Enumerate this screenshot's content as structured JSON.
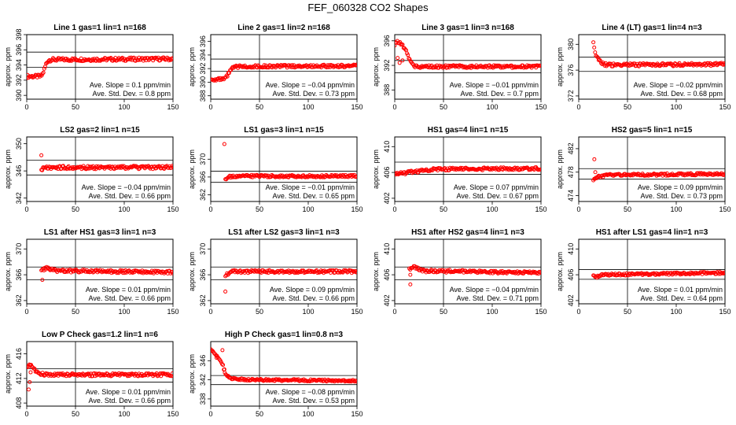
{
  "figure_title": "FEF_060328  CO2 Shapes",
  "ylabel": "approx. ppm",
  "colors": {
    "points": "#ff0000",
    "axes": "#000000"
  },
  "chart_data": [
    {
      "type": "scatter",
      "title": "Line 1 gas=1 lin=1 n=168",
      "xlim": [
        0,
        150
      ],
      "ylim": [
        389.5,
        398
      ],
      "xticks": [
        0,
        50,
        100,
        150
      ],
      "yticks": [
        390,
        392,
        394,
        396,
        398
      ],
      "vline": 50,
      "hlines": [
        395.7,
        393.7
      ],
      "shape": [
        [
          0,
          392.5
        ],
        [
          5,
          392.5
        ],
        [
          10,
          392.5
        ],
        [
          14,
          392.5
        ],
        [
          16,
          392.7
        ],
        [
          18,
          393.4
        ],
        [
          20,
          394.2
        ],
        [
          22,
          394.6
        ],
        [
          25,
          394.7
        ],
        [
          150,
          394.8
        ]
      ],
      "spikes": [],
      "annotation": [
        "Ave. Slope =  0.1  ppm/min",
        "Ave. Std. Dev. =  0.8  ppm"
      ]
    },
    {
      "type": "scatter",
      "title": "Line 2 gas=1 lin=2 n=168",
      "xlim": [
        0,
        150
      ],
      "ylim": [
        387.5,
        397
      ],
      "xticks": [
        0,
        50,
        100,
        150
      ],
      "yticks": [
        388,
        390,
        392,
        394,
        396
      ],
      "vline": 50,
      "hlines": [
        393.4,
        391.6
      ],
      "shape": [
        [
          0,
          390.4
        ],
        [
          5,
          390.4
        ],
        [
          12,
          390.4
        ],
        [
          15,
          390.5
        ],
        [
          18,
          391.2
        ],
        [
          21,
          391.9
        ],
        [
          24,
          392.2
        ],
        [
          30,
          392.3
        ],
        [
          150,
          392.4
        ]
      ],
      "spikes": [],
      "annotation": [
        "Ave. Slope = −0.04  ppm/min",
        "Ave. Std. Dev. =  0.73  ppm"
      ]
    },
    {
      "type": "scatter",
      "title": "Line 3 gas=1 lin=3 n=168",
      "xlim": [
        0,
        150
      ],
      "ylim": [
        386.5,
        397
      ],
      "xticks": [
        0,
        50,
        100,
        150
      ],
      "yticks": [
        388,
        392,
        396
      ],
      "vline": 50,
      "hlines": [
        392.8,
        390.8
      ],
      "shape": [
        [
          0,
          395.4
        ],
        [
          3,
          395.9
        ],
        [
          6,
          395.6
        ],
        [
          9,
          395
        ],
        [
          12,
          394.2
        ],
        [
          15,
          393
        ],
        [
          18,
          392.2
        ],
        [
          21,
          391.8
        ],
        [
          150,
          391.8
        ]
      ],
      "spikes": [
        [
          3,
          393.2
        ],
        [
          5,
          392.4
        ],
        [
          8,
          392.8
        ]
      ],
      "annotation": [
        "Ave. Slope = −0.01  ppm/min",
        "Ave. Std. Dev. =  0.7  ppm"
      ]
    },
    {
      "type": "scatter",
      "title": "Line 4 (LT) gas=1 lin=4 n=3",
      "xlim": [
        0,
        150
      ],
      "ylim": [
        371.5,
        381.5
      ],
      "xticks": [
        0,
        50,
        100,
        150
      ],
      "yticks": [
        372,
        376,
        380
      ],
      "vline": 50,
      "hlines": [
        378,
        375.8
      ],
      "shape": [
        [
          15,
          380.1
        ],
        [
          17,
          378.4
        ],
        [
          20,
          377.8
        ],
        [
          24,
          377
        ],
        [
          30,
          376.8
        ],
        [
          150,
          376.9
        ]
      ],
      "spikes": [],
      "annotation": [
        "Ave. Slope = −0.02  ppm/min",
        "Ave. Std. Dev. =  0.68  ppm"
      ]
    },
    {
      "type": "scatter",
      "title": "LS2 gas=2 lin=1 n=15",
      "xlim": [
        0,
        150
      ],
      "ylim": [
        341.5,
        351
      ],
      "xticks": [
        0,
        50,
        100,
        150
      ],
      "yticks": [
        342,
        346,
        350
      ],
      "vline": 50,
      "hlines": [
        347.6,
        345.4
      ],
      "shape": [
        [
          15,
          346.2
        ],
        [
          18,
          346.6
        ],
        [
          25,
          346.5
        ],
        [
          150,
          346.5
        ]
      ],
      "spikes": [
        [
          15,
          348.3
        ]
      ],
      "annotation": [
        "Ave. Slope = −0.04  ppm/min",
        "Ave. Std. Dev. =  0.66  ppm"
      ]
    },
    {
      "type": "scatter",
      "title": "LS1 gas=3 lin=1 n=15",
      "xlim": [
        0,
        150
      ],
      "ylim": [
        360.5,
        375
      ],
      "xticks": [
        0,
        50,
        100,
        150
      ],
      "yticks": [
        362,
        366,
        370
      ],
      "vline": 50,
      "hlines": [
        367.3,
        364.8
      ],
      "shape": [
        [
          15,
          365.4
        ],
        [
          18,
          366
        ],
        [
          25,
          366.2
        ],
        [
          150,
          366.2
        ]
      ],
      "spikes": [
        [
          14,
          373.4
        ]
      ],
      "annotation": [
        "Ave. Slope = −0.01  ppm/min",
        "Ave. Std. Dev. =  0.65  ppm"
      ]
    },
    {
      "type": "scatter",
      "title": "HS1 gas=4 lin=1 n=15",
      "xlim": [
        0,
        150
      ],
      "ylim": [
        401.5,
        411.5
      ],
      "xticks": [
        0,
        50,
        100,
        150
      ],
      "yticks": [
        402,
        406,
        410
      ],
      "vline": 50,
      "hlines": [
        407.6,
        405.7
      ],
      "shape": [
        [
          0,
          405.8
        ],
        [
          10,
          405.9
        ],
        [
          20,
          406.1
        ],
        [
          40,
          406.5
        ],
        [
          150,
          406.6
        ]
      ],
      "spikes": [],
      "annotation": [
        "Ave. Slope =  0.07  ppm/min",
        "Ave. Std. Dev. =  0.67  ppm"
      ]
    },
    {
      "type": "scatter",
      "title": "HS2 gas=5 lin=1 n=15",
      "xlim": [
        0,
        150
      ],
      "ylim": [
        473,
        484
      ],
      "xticks": [
        0,
        50,
        100,
        150
      ],
      "yticks": [
        474,
        478,
        482
      ],
      "vline": 50,
      "hlines": [
        478.6,
        476.8
      ],
      "shape": [
        [
          15,
          476.8
        ],
        [
          20,
          477.2
        ],
        [
          30,
          477.5
        ],
        [
          150,
          477.7
        ]
      ],
      "spikes": [
        [
          16,
          480.2
        ],
        [
          17,
          478
        ]
      ],
      "annotation": [
        "Ave. Slope =  0.09  ppm/min",
        "Ave. Std. Dev. =  0.73  ppm"
      ]
    },
    {
      "type": "scatter",
      "title": "LS1 after HS1 gas=3 lin=1 n=3",
      "xlim": [
        0,
        150
      ],
      "ylim": [
        361.5,
        371.5
      ],
      "xticks": [
        0,
        50,
        100,
        150
      ],
      "yticks": [
        362,
        366,
        370
      ],
      "vline": 50,
      "hlines": [
        367.2,
        365.2
      ],
      "shape": [
        [
          15,
          366.5
        ],
        [
          20,
          367.1
        ],
        [
          30,
          366.6
        ],
        [
          150,
          366.4
        ]
      ],
      "spikes": [
        [
          16,
          365.2
        ]
      ],
      "annotation": [
        "Ave. Slope =  0.01  ppm/min",
        "Ave. Std. Dev. =  0.66  ppm"
      ]
    },
    {
      "type": "scatter",
      "title": "LS1 after LS2 gas=3 lin=1 n=3",
      "xlim": [
        0,
        150
      ],
      "ylim": [
        361.5,
        371.5
      ],
      "xticks": [
        0,
        50,
        100,
        150
      ],
      "yticks": [
        362,
        366,
        370
      ],
      "vline": 50,
      "hlines": [
        367.2,
        365.2
      ],
      "shape": [
        [
          15,
          365.8
        ],
        [
          20,
          366.5
        ],
        [
          30,
          366.5
        ],
        [
          150,
          366.5
        ]
      ],
      "spikes": [
        [
          15,
          363.4
        ]
      ],
      "annotation": [
        "Ave. Slope =  0.09  ppm/min",
        "Ave. Std. Dev. =  0.66  ppm"
      ]
    },
    {
      "type": "scatter",
      "title": "HS1 after HS2 gas=4 lin=1 n=3",
      "xlim": [
        0,
        150
      ],
      "ylim": [
        401.5,
        411.5
      ],
      "xticks": [
        0,
        50,
        100,
        150
      ],
      "yticks": [
        402,
        406,
        410
      ],
      "vline": 50,
      "hlines": [
        407.2,
        405.2
      ],
      "shape": [
        [
          15,
          406.8
        ],
        [
          20,
          407.2
        ],
        [
          30,
          406.6
        ],
        [
          150,
          406.3
        ]
      ],
      "spikes": [
        [
          16,
          404.5
        ],
        [
          16,
          406
        ]
      ],
      "annotation": [
        "Ave. Slope = −0.04  ppm/min",
        "Ave. Std. Dev. =  0.71  ppm"
      ]
    },
    {
      "type": "scatter",
      "title": "HS1 after LS1 gas=4 lin=1 n=3",
      "xlim": [
        0,
        150
      ],
      "ylim": [
        401.5,
        411.5
      ],
      "xticks": [
        0,
        50,
        100,
        150
      ],
      "yticks": [
        402,
        406,
        410
      ],
      "vline": 50,
      "hlines": [
        406.8,
        405.3
      ],
      "shape": [
        [
          15,
          406
        ],
        [
          18,
          405.6
        ],
        [
          25,
          406
        ],
        [
          150,
          406.3
        ]
      ],
      "spikes": [],
      "annotation": [
        "Ave. Slope =  0.01  ppm/min",
        "Ave. Std. Dev. =  0.64  ppm"
      ]
    },
    {
      "type": "scatter",
      "title": "Low P Check gas=1.2 lin=1 n=6",
      "xlim": [
        0,
        150
      ],
      "ylim": [
        407.5,
        418
      ],
      "xticks": [
        0,
        50,
        100,
        150
      ],
      "yticks": [
        408,
        412,
        416
      ],
      "vline": 50,
      "hlines": [
        413.6,
        411.4
      ],
      "shape": [
        [
          0,
          414
        ],
        [
          4,
          414.2
        ],
        [
          8,
          413.4
        ],
        [
          12,
          412.9
        ],
        [
          20,
          412.6
        ],
        [
          150,
          412.6
        ]
      ],
      "spikes": [
        [
          3,
          411.4
        ],
        [
          2,
          410.2
        ],
        [
          4,
          413
        ]
      ],
      "annotation": [
        "Ave. Slope =  0.01  ppm/min",
        "Ave. Std. Dev. =  0.66  ppm"
      ]
    },
    {
      "type": "scatter",
      "title": "High P Check gas=1 lin=0.8 n=3",
      "xlim": [
        0,
        150
      ],
      "ylim": [
        336.5,
        350
      ],
      "xticks": [
        0,
        50,
        100,
        150
      ],
      "yticks": [
        338,
        342,
        346
      ],
      "vline": 50,
      "hlines": [
        342.9,
        341
      ],
      "shape": [
        [
          0,
          348.5
        ],
        [
          5,
          347.4
        ],
        [
          12,
          345.4
        ],
        [
          15,
          343.2
        ],
        [
          20,
          342.3
        ],
        [
          40,
          342
        ],
        [
          150,
          341.8
        ]
      ],
      "spikes": [
        [
          12,
          348.2
        ],
        [
          6,
          346.6
        ],
        [
          14,
          344.2
        ],
        [
          17,
          342.8
        ]
      ],
      "annotation": [
        "Ave. Slope = −0.08  ppm/min",
        "Ave. Std. Dev. =  0.53  ppm"
      ]
    }
  ]
}
